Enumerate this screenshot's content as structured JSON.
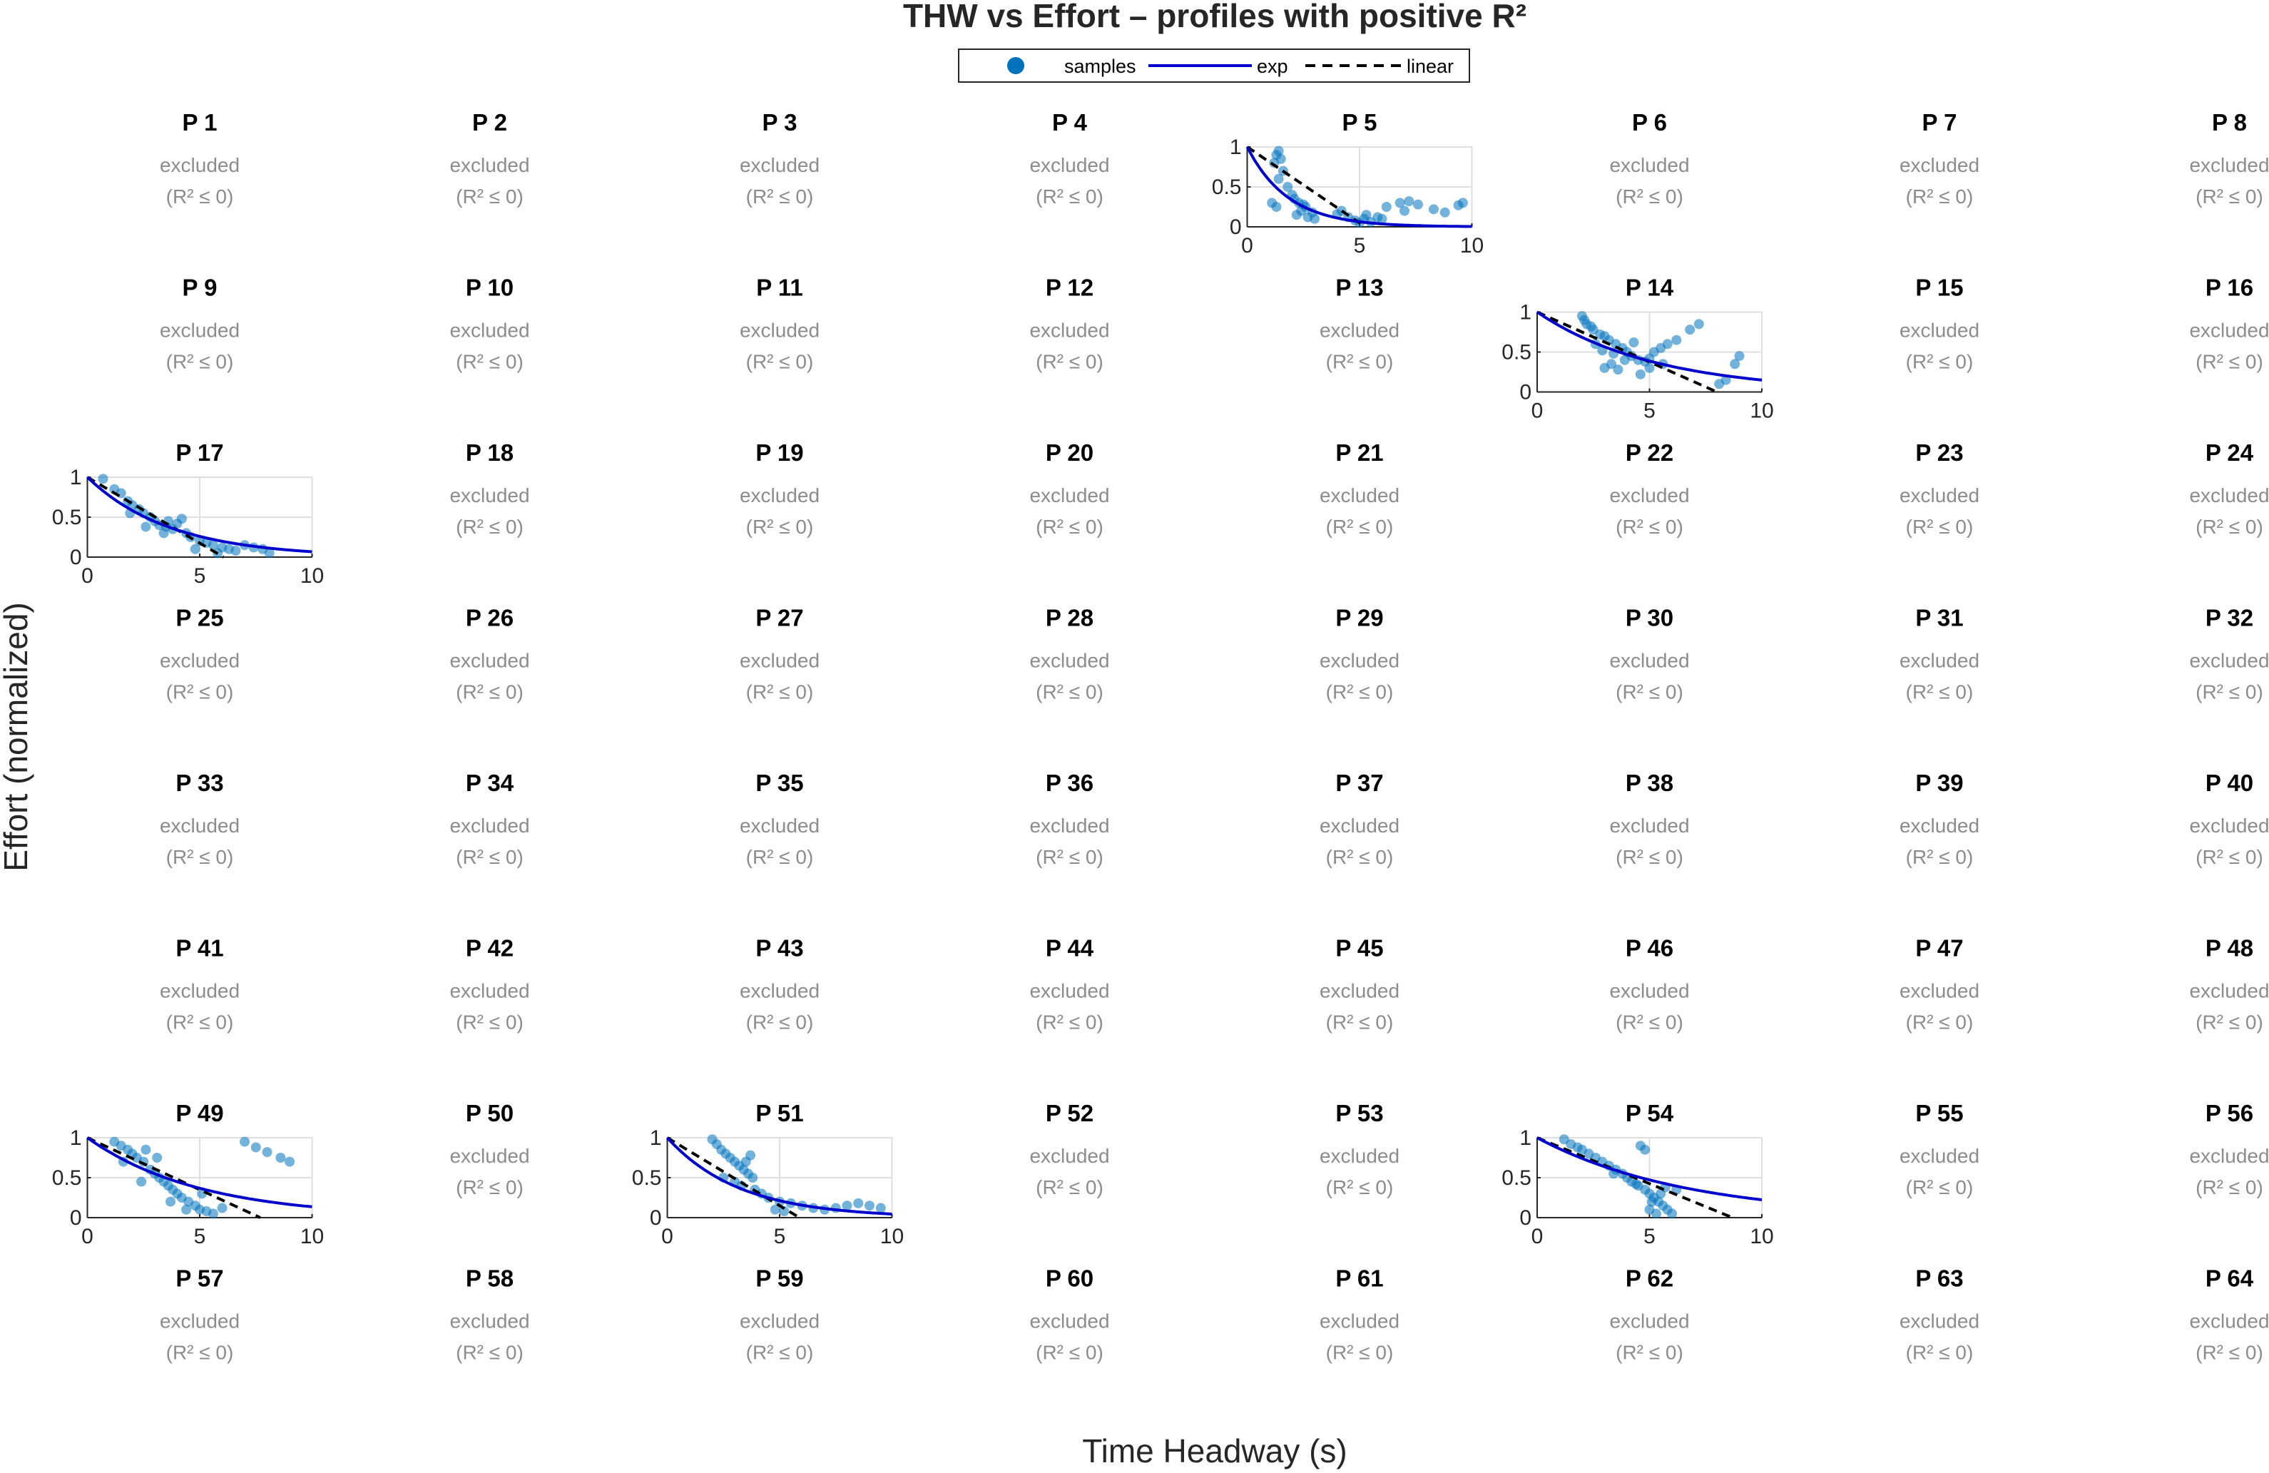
{
  "chart_data": {
    "type": "scatter",
    "title": "THW vs Effort – profiles with positive R²",
    "xlabel": "Time Headway (s)",
    "ylabel": "Effort (normalized)",
    "xlim": [
      0,
      10
    ],
    "ylim": [
      0,
      1
    ],
    "x_ticks": [
      "0",
      "5",
      "10"
    ],
    "y_ticks": [
      "0",
      "0.5",
      "1"
    ],
    "grid": true,
    "legend": {
      "position": "top-center",
      "entries": [
        "samples",
        "exp",
        "linear"
      ]
    },
    "excluded_label": "excluded",
    "excluded_condition": "(R² ≤ 0)",
    "panel_prefix": "P",
    "panel_count": 64,
    "grid_layout": {
      "rows": 8,
      "cols": 8
    },
    "colors": {
      "samples": "#0072BD",
      "exp": "#0000CC",
      "linear": "#000000",
      "excluded_text": "#8c8c8c",
      "grid": "#dfdfdf"
    },
    "fitted_panels": [
      {
        "panel": 5,
        "exp": {
          "a": 1.0,
          "b": 0.55
        },
        "linear": {
          "intercept": 1.0,
          "slope": -0.19
        },
        "samples": [
          [
            1.4,
            0.95
          ],
          [
            1.3,
            0.9
          ],
          [
            1.5,
            0.85
          ],
          [
            1.2,
            0.8
          ],
          [
            1.6,
            0.7
          ],
          [
            1.4,
            0.6
          ],
          [
            1.8,
            0.5
          ],
          [
            2.0,
            0.4
          ],
          [
            2.1,
            0.35
          ],
          [
            2.3,
            0.3
          ],
          [
            2.5,
            0.28
          ],
          [
            2.6,
            0.25
          ],
          [
            2.4,
            0.2
          ],
          [
            2.2,
            0.15
          ],
          [
            2.7,
            0.12
          ],
          [
            1.1,
            0.3
          ],
          [
            1.3,
            0.25
          ],
          [
            2.9,
            0.18
          ],
          [
            3.0,
            0.1
          ],
          [
            4.5,
            0.12
          ],
          [
            4.8,
            0.08
          ],
          [
            5.0,
            0.05
          ],
          [
            5.2,
            0.1
          ],
          [
            5.5,
            0.06
          ],
          [
            5.3,
            0.15
          ],
          [
            6.0,
            0.1
          ],
          [
            6.2,
            0.25
          ],
          [
            6.8,
            0.3
          ],
          [
            7.2,
            0.32
          ],
          [
            7.6,
            0.28
          ],
          [
            8.3,
            0.22
          ],
          [
            8.8,
            0.18
          ],
          [
            9.4,
            0.27
          ],
          [
            9.6,
            0.3
          ],
          [
            7.0,
            0.2
          ],
          [
            4.2,
            0.2
          ],
          [
            4.0,
            0.16
          ],
          [
            5.8,
            0.12
          ]
        ]
      },
      {
        "panel": 14,
        "exp": {
          "a": 1.0,
          "b": 0.19
        },
        "linear": {
          "intercept": 1.0,
          "slope": -0.125
        },
        "samples": [
          [
            2.0,
            0.95
          ],
          [
            2.1,
            0.9
          ],
          [
            2.2,
            0.85
          ],
          [
            2.4,
            0.82
          ],
          [
            2.5,
            0.78
          ],
          [
            2.8,
            0.72
          ],
          [
            3.0,
            0.7
          ],
          [
            3.2,
            0.65
          ],
          [
            3.5,
            0.6
          ],
          [
            3.8,
            0.55
          ],
          [
            4.0,
            0.5
          ],
          [
            4.2,
            0.45
          ],
          [
            4.5,
            0.4
          ],
          [
            4.8,
            0.38
          ],
          [
            5.0,
            0.42
          ],
          [
            5.2,
            0.5
          ],
          [
            5.5,
            0.55
          ],
          [
            5.8,
            0.6
          ],
          [
            6.2,
            0.65
          ],
          [
            6.8,
            0.78
          ],
          [
            7.2,
            0.85
          ],
          [
            3.0,
            0.3
          ],
          [
            3.3,
            0.35
          ],
          [
            3.6,
            0.28
          ],
          [
            4.6,
            0.22
          ],
          [
            5.0,
            0.3
          ],
          [
            2.6,
            0.6
          ],
          [
            2.9,
            0.52
          ],
          [
            3.4,
            0.48
          ],
          [
            3.9,
            0.4
          ],
          [
            8.1,
            0.1
          ],
          [
            8.4,
            0.15
          ],
          [
            8.8,
            0.35
          ],
          [
            9.0,
            0.45
          ],
          [
            4.3,
            0.62
          ],
          [
            5.6,
            0.35
          ]
        ]
      },
      {
        "panel": 17,
        "exp": {
          "a": 1.0,
          "b": 0.27
        },
        "linear": {
          "intercept": 1.0,
          "slope": -0.165
        },
        "samples": [
          [
            0.7,
            0.98
          ],
          [
            1.2,
            0.85
          ],
          [
            1.5,
            0.8
          ],
          [
            1.8,
            0.7
          ],
          [
            2.0,
            0.65
          ],
          [
            2.3,
            0.6
          ],
          [
            2.5,
            0.55
          ],
          [
            2.8,
            0.5
          ],
          [
            3.0,
            0.45
          ],
          [
            3.2,
            0.4
          ],
          [
            3.5,
            0.38
          ],
          [
            3.8,
            0.35
          ],
          [
            4.0,
            0.42
          ],
          [
            4.2,
            0.48
          ],
          [
            4.4,
            0.3
          ],
          [
            4.6,
            0.25
          ],
          [
            5.0,
            0.2
          ],
          [
            5.3,
            0.18
          ],
          [
            5.6,
            0.15
          ],
          [
            6.0,
            0.12
          ],
          [
            6.3,
            0.1
          ],
          [
            6.6,
            0.08
          ],
          [
            7.0,
            0.15
          ],
          [
            7.4,
            0.12
          ],
          [
            7.8,
            0.1
          ],
          [
            8.1,
            0.05
          ],
          [
            2.6,
            0.38
          ],
          [
            3.4,
            0.3
          ],
          [
            4.8,
            0.1
          ],
          [
            5.8,
            0.05
          ],
          [
            1.9,
            0.55
          ],
          [
            3.6,
            0.45
          ]
        ]
      },
      {
        "panel": 49,
        "exp": {
          "a": 1.0,
          "b": 0.2
        },
        "linear": {
          "intercept": 1.0,
          "slope": -0.13
        },
        "samples": [
          [
            1.2,
            0.95
          ],
          [
            1.5,
            0.9
          ],
          [
            1.8,
            0.85
          ],
          [
            2.0,
            0.8
          ],
          [
            2.2,
            0.75
          ],
          [
            2.5,
            0.7
          ],
          [
            2.8,
            0.6
          ],
          [
            3.0,
            0.55
          ],
          [
            3.2,
            0.5
          ],
          [
            3.4,
            0.45
          ],
          [
            3.6,
            0.4
          ],
          [
            3.8,
            0.35
          ],
          [
            4.0,
            0.3
          ],
          [
            4.2,
            0.25
          ],
          [
            4.5,
            0.2
          ],
          [
            4.8,
            0.15
          ],
          [
            5.0,
            0.1
          ],
          [
            5.3,
            0.08
          ],
          [
            5.6,
            0.05
          ],
          [
            6.0,
            0.12
          ],
          [
            2.6,
            0.85
          ],
          [
            3.1,
            0.75
          ],
          [
            1.6,
            0.7
          ],
          [
            2.4,
            0.45
          ],
          [
            3.7,
            0.2
          ],
          [
            4.4,
            0.1
          ],
          [
            7.0,
            0.95
          ],
          [
            7.5,
            0.88
          ],
          [
            8.0,
            0.82
          ],
          [
            8.6,
            0.75
          ],
          [
            9.0,
            0.7
          ],
          [
            5.1,
            0.3
          ]
        ]
      },
      {
        "panel": 51,
        "exp": {
          "a": 1.0,
          "b": 0.31
        },
        "linear": {
          "intercept": 1.0,
          "slope": -0.17
        },
        "samples": [
          [
            2.0,
            0.98
          ],
          [
            2.2,
            0.92
          ],
          [
            2.4,
            0.85
          ],
          [
            2.6,
            0.8
          ],
          [
            2.8,
            0.75
          ],
          [
            3.0,
            0.7
          ],
          [
            3.2,
            0.65
          ],
          [
            3.4,
            0.6
          ],
          [
            3.6,
            0.55
          ],
          [
            3.8,
            0.5
          ],
          [
            3.5,
            0.7
          ],
          [
            3.7,
            0.78
          ],
          [
            3.3,
            0.4
          ],
          [
            3.9,
            0.35
          ],
          [
            4.2,
            0.3
          ],
          [
            4.5,
            0.25
          ],
          [
            5.0,
            0.2
          ],
          [
            5.5,
            0.18
          ],
          [
            6.0,
            0.15
          ],
          [
            6.5,
            0.12
          ],
          [
            7.0,
            0.1
          ],
          [
            7.5,
            0.12
          ],
          [
            8.0,
            0.15
          ],
          [
            8.5,
            0.18
          ],
          [
            9.0,
            0.15
          ],
          [
            9.5,
            0.12
          ],
          [
            4.8,
            0.1
          ],
          [
            5.2,
            0.08
          ],
          [
            2.5,
            0.5
          ],
          [
            3.0,
            0.45
          ]
        ]
      },
      {
        "panel": 54,
        "exp": {
          "a": 1.0,
          "b": 0.15
        },
        "linear": {
          "intercept": 1.0,
          "slope": -0.115
        },
        "samples": [
          [
            1.2,
            0.98
          ],
          [
            1.5,
            0.92
          ],
          [
            1.8,
            0.88
          ],
          [
            2.0,
            0.85
          ],
          [
            2.3,
            0.8
          ],
          [
            2.6,
            0.75
          ],
          [
            2.9,
            0.7
          ],
          [
            3.2,
            0.65
          ],
          [
            3.5,
            0.6
          ],
          [
            3.8,
            0.55
          ],
          [
            4.0,
            0.5
          ],
          [
            4.2,
            0.45
          ],
          [
            4.5,
            0.4
          ],
          [
            4.8,
            0.35
          ],
          [
            5.0,
            0.3
          ],
          [
            5.2,
            0.25
          ],
          [
            5.4,
            0.2
          ],
          [
            5.6,
            0.15
          ],
          [
            5.8,
            0.1
          ],
          [
            6.0,
            0.05
          ],
          [
            4.6,
            0.9
          ],
          [
            4.8,
            0.85
          ],
          [
            5.0,
            0.1
          ],
          [
            5.1,
            0.2
          ],
          [
            5.3,
            0.05
          ],
          [
            5.5,
            0.3
          ],
          [
            5.7,
            0.38
          ],
          [
            6.2,
            0.35
          ],
          [
            3.4,
            0.55
          ],
          [
            4.4,
            0.42
          ]
        ]
      }
    ]
  }
}
